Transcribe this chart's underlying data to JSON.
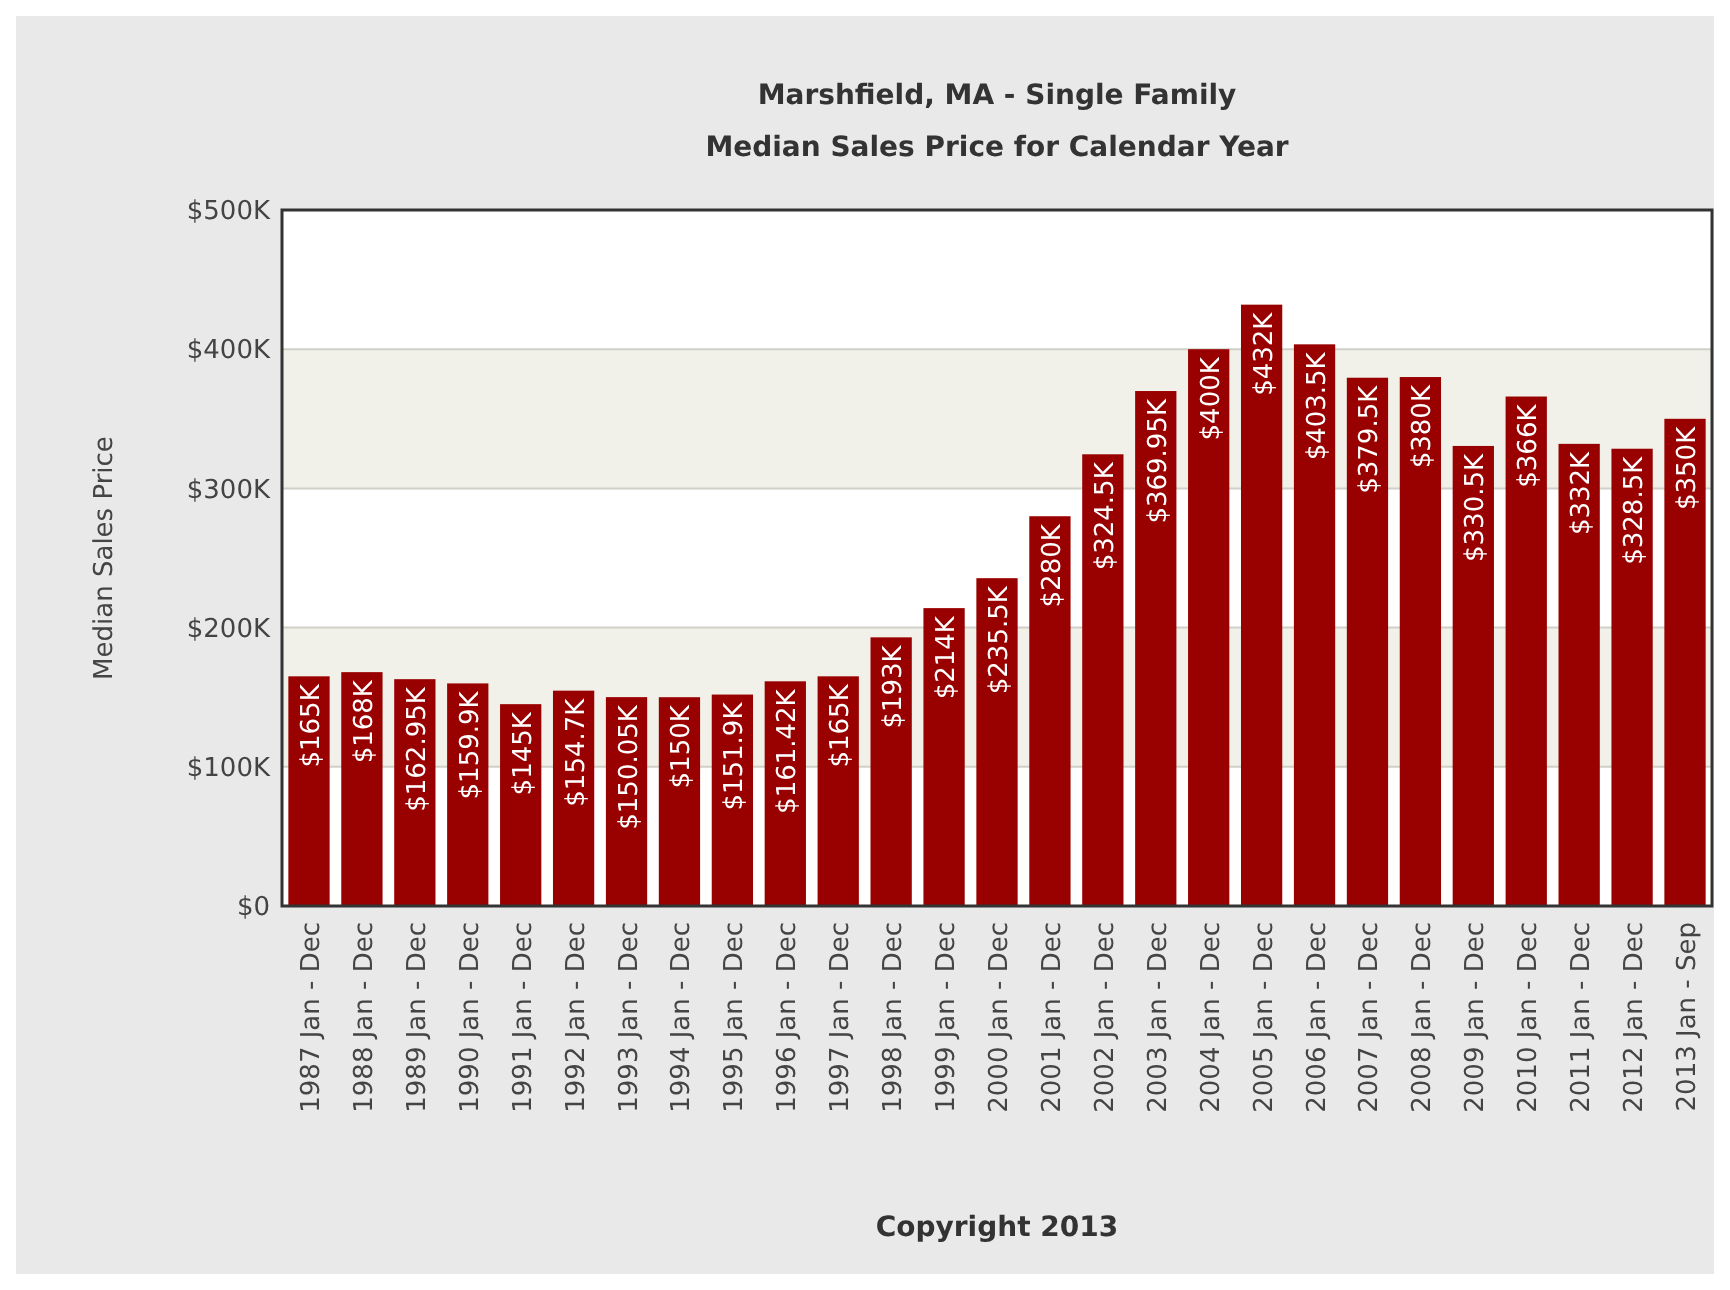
{
  "chart_data": {
    "type": "bar",
    "title": "Marshfield, MA - Single Family",
    "subtitle": "Median Sales Price for Calendar Year",
    "ylabel": "Median Sales Price",
    "annotations": [
      "Copyright 2013"
    ],
    "categories": [
      "1987 Jan - Dec",
      "1988 Jan - Dec",
      "1989 Jan - Dec",
      "1990 Jan - Dec",
      "1991 Jan - Dec",
      "1992 Jan - Dec",
      "1993 Jan - Dec",
      "1994 Jan - Dec",
      "1995 Jan - Dec",
      "1996 Jan - Dec",
      "1997 Jan - Dec",
      "1998 Jan - Dec",
      "1999 Jan - Dec",
      "2000 Jan - Dec",
      "2001 Jan - Dec",
      "2002 Jan - Dec",
      "2003 Jan - Dec",
      "2004 Jan - Dec",
      "2005 Jan - Dec",
      "2006 Jan - Dec",
      "2007 Jan - Dec",
      "2008 Jan - Dec",
      "2009 Jan - Dec",
      "2010 Jan - Dec",
      "2011 Jan - Dec",
      "2012 Jan - Dec",
      "2013 Jan - Sep"
    ],
    "values": [
      165,
      168,
      162.95,
      159.9,
      145,
      154.7,
      150.05,
      150,
      151.9,
      161.42,
      165,
      193,
      214,
      235.5,
      280,
      324.5,
      369.95,
      400,
      432,
      403.5,
      379.5,
      380,
      330.5,
      366,
      332,
      328.5,
      350
    ],
    "value_labels": [
      "$165K",
      "$168K",
      "$162.95K",
      "$159.9K",
      "$145K",
      "$154.7K",
      "$150.05K",
      "$150K",
      "$151.9K",
      "$161.42K",
      "$165K",
      "$193K",
      "$214K",
      "$235.5K",
      "$280K",
      "$324.5K",
      "$369.95K",
      "$400K",
      "$432K",
      "$403.5K",
      "$379.5K",
      "$380K",
      "$330.5K",
      "$366K",
      "$332K",
      "$328.5K",
      "$350K"
    ],
    "color": "#990000",
    "ylim": [
      0,
      500
    ],
    "yticks": [
      {
        "value": 0,
        "label": "$0"
      },
      {
        "value": 100,
        "label": "$100K"
      },
      {
        "value": 200,
        "label": "$200K"
      },
      {
        "value": 300,
        "label": "$300K"
      },
      {
        "value": 400,
        "label": "$400K"
      },
      {
        "value": 500,
        "label": "$500K"
      }
    ],
    "grid": "y"
  }
}
